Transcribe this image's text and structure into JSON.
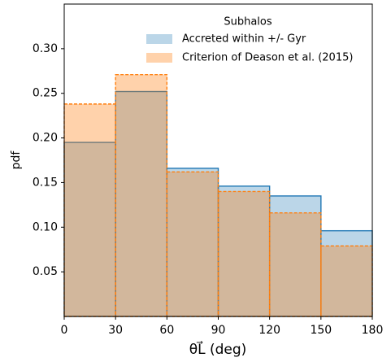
{
  "chart_data": {
    "type": "histogram",
    "xlabel": "θL⃗ (deg)",
    "ylabel": "pdf",
    "legend_title": "Subhalos",
    "legend": "upper right",
    "bins": [
      0,
      30,
      60,
      90,
      120,
      150,
      180
    ],
    "series": [
      {
        "name": "Accreted within +/- Gyr",
        "color": "#1f77b4",
        "values": [
          0.195,
          0.252,
          0.166,
          0.146,
          0.135,
          0.096
        ]
      },
      {
        "name": "Criterion of Deason et al. (2015)",
        "color": "#ff7f0e",
        "values": [
          0.238,
          0.271,
          0.162,
          0.14,
          0.116,
          0.079
        ]
      }
    ],
    "xlim": [
      0,
      180
    ],
    "ylim": [
      0,
      0.35
    ],
    "xticks": [
      0,
      30,
      60,
      90,
      120,
      150,
      180
    ],
    "yticks": [
      0.05,
      {
        "value": 0.1,
        "label": "0.10"
      },
      0.15,
      {
        "value": 0.2,
        "label": "0.20"
      },
      0.25,
      {
        "value": 0.3,
        "label": "0.30"
      }
    ]
  }
}
